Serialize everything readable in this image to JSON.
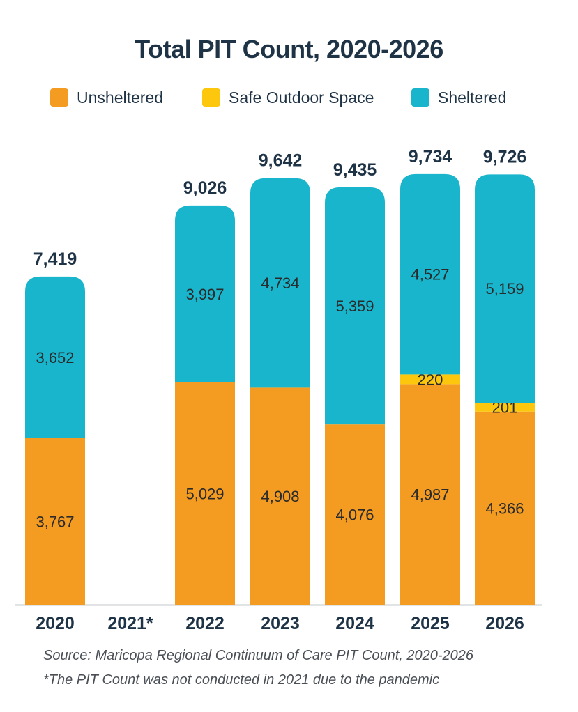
{
  "chart_data": {
    "type": "bar",
    "stacked": true,
    "title": "Total PIT Count, 2020-2026",
    "categories": [
      "2020",
      "2021*",
      "2022",
      "2023",
      "2024",
      "2025",
      "2026"
    ],
    "series": [
      {
        "name": "Unsheltered",
        "color": "#f49c21",
        "values": [
          3767,
          null,
          5029,
          4908,
          4076,
          4987,
          4366
        ]
      },
      {
        "name": "Safe Outdoor Space",
        "color": "#fdc70e",
        "values": [
          null,
          null,
          null,
          null,
          null,
          220,
          201
        ]
      },
      {
        "name": "Sheltered",
        "color": "#19b5cc",
        "values": [
          3652,
          null,
          3997,
          4734,
          5359,
          4527,
          5159
        ]
      }
    ],
    "totals": [
      "7,419",
      "",
      "9,026",
      "9,642",
      "9,435",
      "9,734",
      "9,726"
    ],
    "segment_labels": {
      "Unsheltered": [
        "3,767",
        "",
        "5,029",
        "4,908",
        "4,076",
        "4,987",
        "4,366"
      ],
      "Safe Outdoor Space": [
        "",
        "",
        "",
        "",
        "",
        "220",
        "201"
      ],
      "Sheltered": [
        "3,652",
        "",
        "3,997",
        "4,734",
        "5,359",
        "4,527",
        "5,159"
      ]
    },
    "ylim": [
      0,
      10000
    ],
    "legend_position": "top",
    "grid": false
  },
  "legend": {
    "unsheltered": "Unsheltered",
    "safe_outdoor": "Safe Outdoor Space",
    "sheltered": "Sheltered"
  },
  "footnotes": {
    "source": "Source: Maricopa Regional Continuum of Care PIT Count, 2020-2026",
    "note": "*The PIT Count was not conducted in 2021 due to the pandemic"
  }
}
